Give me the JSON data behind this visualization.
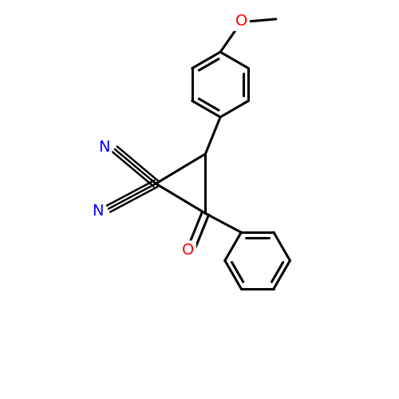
{
  "background_color": "#ffffff",
  "bond_color": "#000000",
  "atom_colors": {
    "N": "#0000ff",
    "O": "#ff0000",
    "C": "#000000"
  },
  "line_width": 2.2,
  "font_size_atom": 14,
  "figure_size": [
    5.0,
    5.0
  ],
  "dpi": 100
}
